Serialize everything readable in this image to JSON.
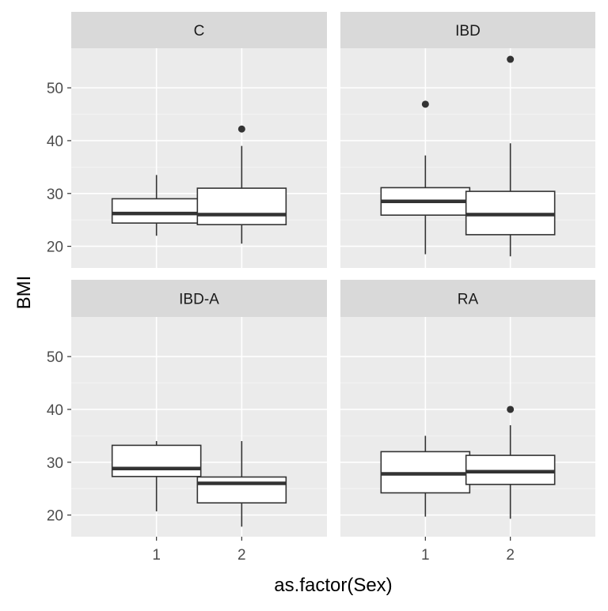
{
  "chart_data": {
    "type": "boxplot",
    "xlabel": "as.factor(Sex)",
    "ylabel": "BMI",
    "categories": [
      "1",
      "2"
    ],
    "y_ticks": [
      20,
      30,
      40,
      50
    ],
    "ylim": [
      15.9,
      57.5
    ],
    "grid": true,
    "facet_layout": "2x2",
    "colors": {
      "panel_bg": "#ebebeb",
      "strip_bg": "#d9d9d9",
      "grid_major": "#ffffff",
      "box_fill": "#ffffff",
      "box_line": "#333333",
      "tick_text": "#4d4d4d"
    },
    "panels": [
      {
        "label": "C",
        "boxes": [
          {
            "category": "1",
            "whisker_low": 22.0,
            "q1": 24.4,
            "median": 26.2,
            "q3": 29.0,
            "whisker_high": 33.5,
            "outliers": []
          },
          {
            "category": "2",
            "whisker_low": 20.5,
            "q1": 24.1,
            "median": 26.0,
            "q3": 31.0,
            "whisker_high": 39.0,
            "outliers": [
              42.2
            ]
          }
        ]
      },
      {
        "label": "IBD",
        "boxes": [
          {
            "category": "1",
            "whisker_low": 18.5,
            "q1": 25.9,
            "median": 28.5,
            "q3": 31.1,
            "whisker_high": 37.2,
            "outliers": [
              46.9
            ]
          },
          {
            "category": "2",
            "whisker_low": 18.1,
            "q1": 22.2,
            "median": 26.0,
            "q3": 30.4,
            "whisker_high": 39.5,
            "outliers": [
              55.4
            ]
          }
        ]
      },
      {
        "label": "IBD-A",
        "boxes": [
          {
            "category": "1",
            "whisker_low": 20.7,
            "q1": 27.3,
            "median": 28.8,
            "q3": 33.2,
            "whisker_high": 34.0,
            "outliers": []
          },
          {
            "category": "2",
            "whisker_low": 17.8,
            "q1": 22.3,
            "median": 26.0,
            "q3": 27.2,
            "whisker_high": 34.0,
            "outliers": []
          }
        ]
      },
      {
        "label": "RA",
        "boxes": [
          {
            "category": "1",
            "whisker_low": 19.7,
            "q1": 24.2,
            "median": 27.8,
            "q3": 32.0,
            "whisker_high": 35.0,
            "outliers": []
          },
          {
            "category": "2",
            "whisker_low": 19.3,
            "q1": 25.8,
            "median": 28.2,
            "q3": 31.3,
            "whisker_high": 37.0,
            "outliers": [
              40.0
            ]
          }
        ]
      }
    ]
  }
}
